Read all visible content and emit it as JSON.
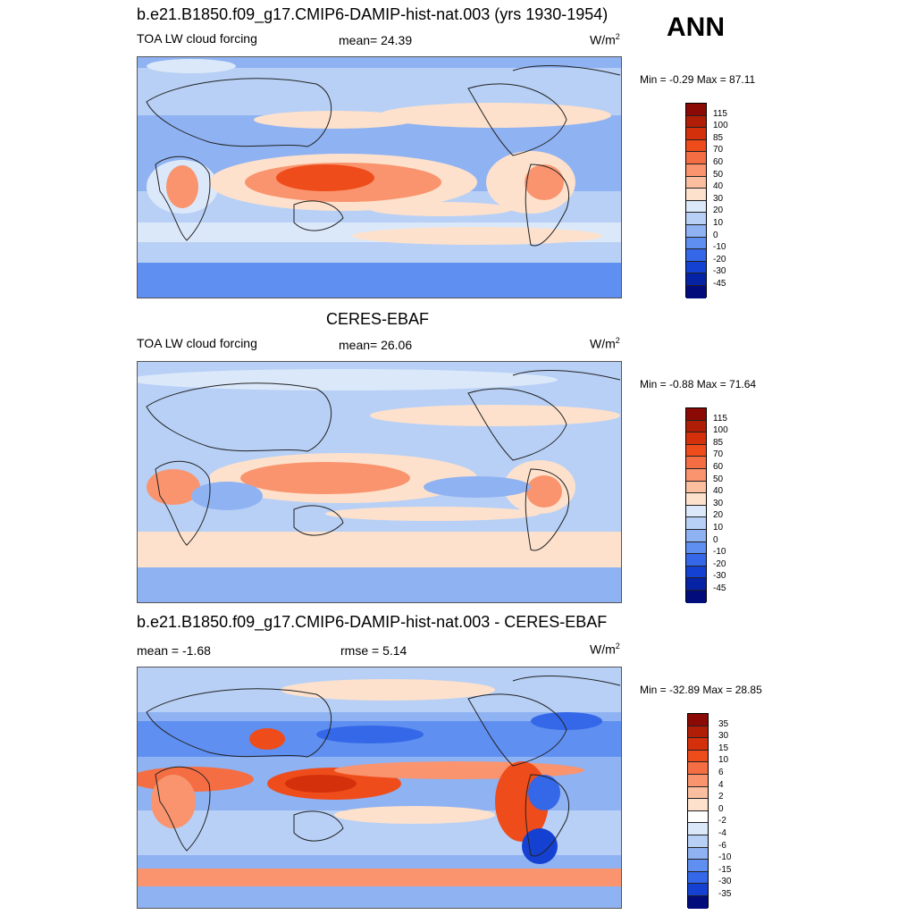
{
  "season": "ANN",
  "panels": [
    {
      "id": "model",
      "title": "b.e21.B1850.f09_g17.CMIP6-DAMIP-hist-nat.003 (yrs 1930-1954)",
      "variable": "TOA LW cloud forcing",
      "stat_text": "mean=  24.39",
      "units_base": "W/m",
      "units_sup": "2",
      "minmax": "Min =  -0.29 Max =  87.11",
      "colorbar": {
        "labels": [
          "115",
          "100",
          "85",
          "70",
          "60",
          "50",
          "40",
          "30",
          "20",
          "10",
          "0",
          "-10",
          "-20",
          "-30",
          "-45"
        ],
        "colors": [
          "#8b0a05",
          "#b01e08",
          "#d4300b",
          "#ef4c1b",
          "#f56e43",
          "#f9946e",
          "#fbbf9f",
          "#fde1cc",
          "#dbe8fa",
          "#b8d0f6",
          "#8fb2f2",
          "#5f8ff0",
          "#3468e8",
          "#1441d2",
          "#0623a6",
          "#020c7a"
        ]
      },
      "map_colors": [
        "#dbe8fa",
        "#b8d0f6",
        "#8fb2f2",
        "#fde1cc",
        "#f9946e",
        "#ef4c1b",
        "#5f8ff0"
      ]
    },
    {
      "id": "obs",
      "title": "CERES-EBAF",
      "variable": "TOA LW cloud forcing",
      "stat_text": "mean=  26.06",
      "units_base": "W/m",
      "units_sup": "2",
      "minmax": "Min =  -0.88 Max =  71.64",
      "colorbar": {
        "labels": [
          "115",
          "100",
          "85",
          "70",
          "60",
          "50",
          "40",
          "30",
          "20",
          "10",
          "0",
          "-10",
          "-20",
          "-30",
          "-45"
        ],
        "colors": [
          "#8b0a05",
          "#b01e08",
          "#d4300b",
          "#ef4c1b",
          "#f56e43",
          "#f9946e",
          "#fbbf9f",
          "#fde1cc",
          "#dbe8fa",
          "#b8d0f6",
          "#8fb2f2",
          "#5f8ff0",
          "#3468e8",
          "#1441d2",
          "#0623a6",
          "#020c7a"
        ]
      }
    },
    {
      "id": "diff",
      "title": "b.e21.B1850.f09_g17.CMIP6-DAMIP-hist-nat.003 - CERES-EBAF",
      "stat_text": "mean =  -1.68",
      "rmse_text": "rmse =   5.14",
      "units_base": "W/m",
      "units_sup": "2",
      "minmax": "Min = -32.89 Max =  28.85",
      "colorbar": {
        "labels": [
          "35",
          "30",
          "15",
          "10",
          "6",
          "4",
          "2",
          "0",
          "-2",
          "-4",
          "-6",
          "-10",
          "-15",
          "-30",
          "-35"
        ],
        "colors": [
          "#8b0a05",
          "#b01e08",
          "#d4300b",
          "#ef4c1b",
          "#f56e43",
          "#f9946e",
          "#fbbf9f",
          "#fde1cc",
          "#ffffff",
          "#dbe8fa",
          "#b8d0f6",
          "#8fb2f2",
          "#5f8ff0",
          "#3468e8",
          "#1441d2",
          "#020c7a"
        ]
      }
    }
  ]
}
